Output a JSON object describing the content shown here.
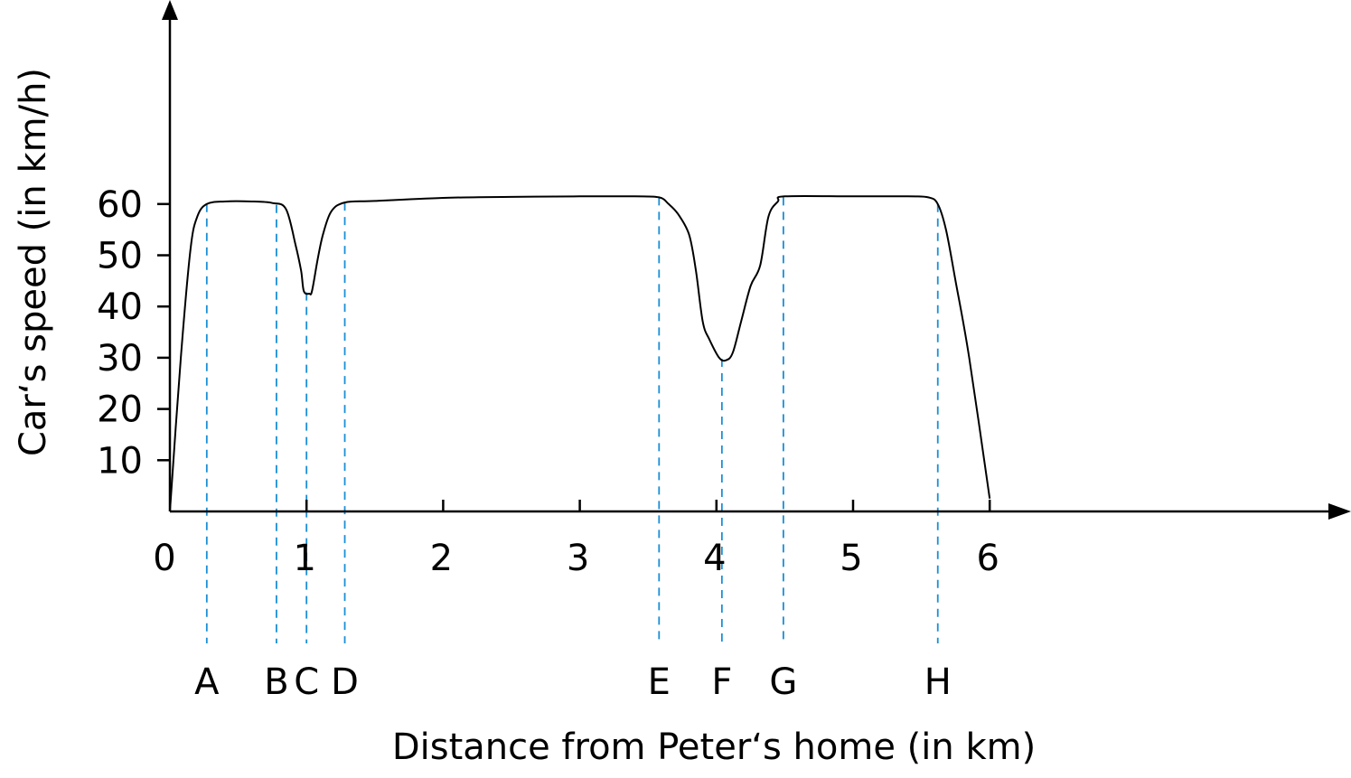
{
  "chart_data": {
    "type": "line",
    "title": "",
    "xlabel": "Distance from Peter‘s home (in km)",
    "ylabel": "Car‘s speed (in km/h)",
    "xlim": [
      0,
      8.5
    ],
    "ylim": [
      0,
      96
    ],
    "x_ticks": [
      0,
      1,
      2,
      3,
      4,
      5,
      6
    ],
    "x_tick_labels": [
      "0",
      "1",
      "2",
      "3",
      "4",
      "5",
      "6"
    ],
    "y_ticks": [
      10,
      20,
      30,
      40,
      50,
      60
    ],
    "y_tick_labels": [
      "10",
      "20",
      "30",
      "40",
      "50",
      "60"
    ],
    "grid": false,
    "series": [
      {
        "x": [
          0,
          0.08,
          0.15,
          0.2,
          0.27,
          0.4,
          0.6,
          0.75,
          0.85,
          0.92,
          0.96,
          0.98,
          1.02,
          1.04,
          1.08,
          1.12,
          1.18,
          1.28,
          1.5,
          2.0,
          2.5,
          3.0,
          3.4,
          3.58,
          3.65,
          3.72,
          3.8,
          3.85,
          3.9,
          3.95,
          4.02,
          4.07,
          4.12,
          4.18,
          4.25,
          4.32,
          4.38,
          4.45,
          4.5,
          5.0,
          5.4,
          5.55,
          5.62,
          5.68,
          5.75,
          5.85,
          6.0
        ],
        "y": [
          0,
          30,
          51,
          57.5,
          60,
          60.5,
          60.5,
          60.2,
          59,
          52,
          47,
          43,
          42.5,
          43,
          49,
          54,
          58.5,
          60.3,
          60.6,
          61.2,
          61.4,
          61.5,
          61.5,
          61.3,
          60,
          58,
          54,
          47,
          37,
          33.5,
          30,
          29.5,
          31,
          37,
          44,
          48,
          57.5,
          60.5,
          61.5,
          61.5,
          61.5,
          61.3,
          60,
          55,
          45,
          30,
          2.5
        ]
      }
    ],
    "markers": [
      {
        "label": "A",
        "x": 0.27
      },
      {
        "label": "B",
        "x": 0.78
      },
      {
        "label": "C",
        "x": 1.0
      },
      {
        "label": "D",
        "x": 1.28
      },
      {
        "label": "E",
        "x": 3.58
      },
      {
        "label": "F",
        "x": 4.04
      },
      {
        "label": "G",
        "x": 4.49
      },
      {
        "label": "H",
        "x": 5.62
      }
    ]
  }
}
